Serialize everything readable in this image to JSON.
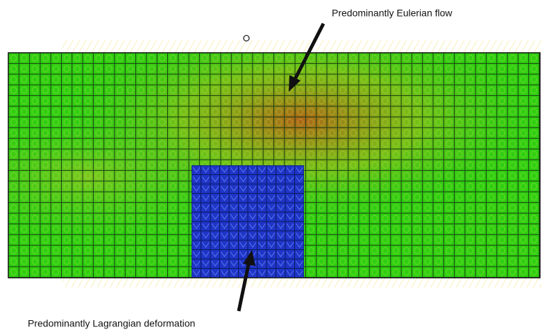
{
  "annotations": {
    "top": {
      "label": "Predominantly Eulerian flow"
    },
    "bottom": {
      "label": "Predominantly Lagrangian deformation"
    }
  }
}
